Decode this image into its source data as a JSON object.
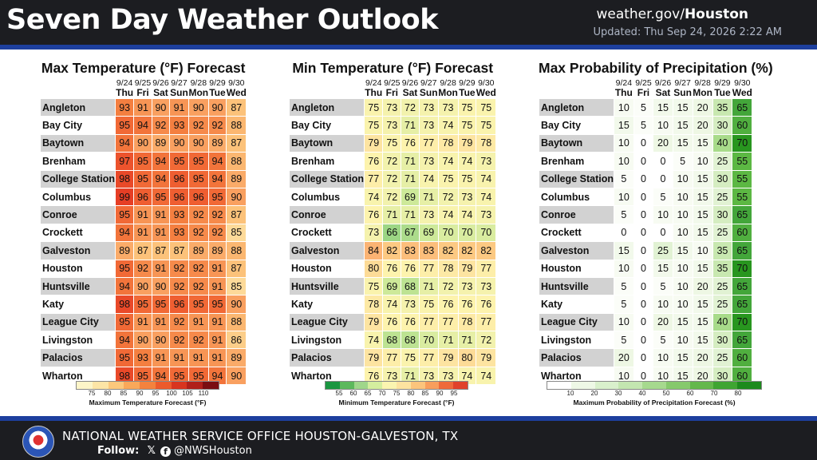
{
  "header": {
    "title": "Seven Day Weather Outlook",
    "site_prefix": "weather.gov/",
    "site_bold": "Houston",
    "updated": "Updated: Thu Sep 24, 2026 2:22 AM"
  },
  "footer": {
    "office": "NATIONAL WEATHER SERVICE OFFICE HOUSTON-GALVESTON, TX",
    "follow_label": "Follow:",
    "x_glyph": "𝕏",
    "fb_glyph": "f",
    "handle": "@NWSHouston"
  },
  "days": [
    {
      "date": "9/24",
      "day": "Thu"
    },
    {
      "date": "9/25",
      "day": "Fri"
    },
    {
      "date": "9/26",
      "day": "Sat"
    },
    {
      "date": "9/27",
      "day": "Sun"
    },
    {
      "date": "9/28",
      "day": "Mon"
    },
    {
      "date": "9/29",
      "day": "Tue"
    },
    {
      "date": "9/30",
      "day": "Wed"
    }
  ],
  "cities": [
    "Angleton",
    "Bay City",
    "Baytown",
    "Brenham",
    "College Station",
    "Columbus",
    "Conroe",
    "Crockett",
    "Galveston",
    "Houston",
    "Huntsville",
    "Katy",
    "League City",
    "Livingston",
    "Palacios",
    "Wharton"
  ],
  "panels": [
    {
      "key": "max",
      "title": "Max Temperature (°F) Forecast",
      "legend_label": "Maximum Temperature Forecast (°F)",
      "legend_ticks": [
        "75",
        "80",
        "85",
        "90",
        "95",
        "100",
        "105",
        "110"
      ],
      "legend_colors": [
        "#fdf5c8",
        "#fde5a6",
        "#fcc87c",
        "#f9a85a",
        "#f4823e",
        "#ec5a2c",
        "#d8341f",
        "#b01f1a",
        "#7a0e12"
      ],
      "values": [
        [
          93,
          91,
          90,
          91,
          90,
          90,
          87
        ],
        [
          95,
          94,
          92,
          93,
          92,
          92,
          88
        ],
        [
          94,
          90,
          89,
          90,
          90,
          89,
          87
        ],
        [
          97,
          95,
          94,
          95,
          95,
          94,
          88
        ],
        [
          98,
          95,
          94,
          96,
          95,
          94,
          89
        ],
        [
          99,
          96,
          95,
          96,
          96,
          95,
          90
        ],
        [
          95,
          91,
          91,
          93,
          92,
          92,
          87
        ],
        [
          94,
          91,
          91,
          93,
          92,
          92,
          85
        ],
        [
          89,
          87,
          87,
          87,
          89,
          89,
          88
        ],
        [
          95,
          92,
          91,
          92,
          92,
          91,
          87
        ],
        [
          94,
          90,
          90,
          92,
          92,
          91,
          85
        ],
        [
          98,
          95,
          95,
          96,
          95,
          95,
          90
        ],
        [
          95,
          91,
          91,
          92,
          91,
          91,
          88
        ],
        [
          94,
          90,
          90,
          92,
          92,
          91,
          86
        ],
        [
          95,
          93,
          91,
          91,
          91,
          91,
          89
        ],
        [
          98,
          95,
          94,
          95,
          95,
          94,
          90
        ]
      ]
    },
    {
      "key": "min",
      "title": "Min Temperature (°F) Forecast",
      "legend_label": "Minimum Temperature Forecast (°F)",
      "legend_ticks": [
        "55",
        "60",
        "65",
        "70",
        "75",
        "80",
        "85",
        "90",
        "95"
      ],
      "legend_colors": [
        "#1a9641",
        "#5cb85c",
        "#9fd68a",
        "#d4ee9e",
        "#fbf5b0",
        "#fde3a0",
        "#fcc47c",
        "#f89e5c",
        "#ee6a3a",
        "#e0422a"
      ],
      "values": [
        [
          75,
          73,
          72,
          73,
          73,
          75,
          75
        ],
        [
          75,
          73,
          71,
          73,
          74,
          75,
          75
        ],
        [
          79,
          75,
          76,
          77,
          78,
          79,
          78
        ],
        [
          76,
          72,
          71,
          73,
          74,
          74,
          73
        ],
        [
          77,
          72,
          71,
          74,
          75,
          75,
          74
        ],
        [
          74,
          72,
          69,
          71,
          72,
          73,
          74
        ],
        [
          76,
          71,
          71,
          73,
          74,
          74,
          73
        ],
        [
          73,
          66,
          67,
          69,
          70,
          70,
          70
        ],
        [
          84,
          82,
          83,
          83,
          82,
          82,
          82
        ],
        [
          80,
          76,
          76,
          77,
          78,
          79,
          77
        ],
        [
          75,
          69,
          68,
          71,
          72,
          73,
          73
        ],
        [
          78,
          74,
          73,
          75,
          76,
          76,
          76
        ],
        [
          79,
          76,
          76,
          77,
          77,
          78,
          77
        ],
        [
          74,
          68,
          68,
          70,
          71,
          71,
          72
        ],
        [
          79,
          77,
          75,
          77,
          79,
          80,
          79
        ],
        [
          76,
          73,
          71,
          73,
          73,
          74,
          74
        ]
      ]
    },
    {
      "key": "pop",
      "title": "Max Probability of Precipitation (%)",
      "legend_label": "Maximum Probability of Precipitation Forecast (%)",
      "legend_ticks": [
        "10",
        "20",
        "30",
        "40",
        "50",
        "60",
        "70",
        "80"
      ],
      "legend_colors": [
        "#ffffff",
        "#eef8e6",
        "#d9f0cc",
        "#c3e6b0",
        "#a6d98e",
        "#86c96c",
        "#64b84c",
        "#3fa532",
        "#1d8a1d"
      ],
      "values": [
        [
          10,
          5,
          15,
          15,
          20,
          35,
          65
        ],
        [
          15,
          5,
          10,
          15,
          20,
          30,
          60
        ],
        [
          10,
          0,
          20,
          15,
          15,
          40,
          70
        ],
        [
          10,
          0,
          0,
          5,
          10,
          25,
          55
        ],
        [
          5,
          0,
          0,
          10,
          15,
          30,
          55
        ],
        [
          10,
          0,
          5,
          10,
          15,
          25,
          55
        ],
        [
          5,
          0,
          10,
          10,
          15,
          30,
          65
        ],
        [
          0,
          0,
          0,
          10,
          15,
          25,
          60
        ],
        [
          15,
          0,
          25,
          15,
          10,
          35,
          65
        ],
        [
          10,
          0,
          15,
          10,
          15,
          35,
          70
        ],
        [
          5,
          0,
          5,
          10,
          20,
          25,
          65
        ],
        [
          5,
          0,
          10,
          10,
          15,
          25,
          65
        ],
        [
          10,
          0,
          20,
          15,
          15,
          40,
          70
        ],
        [
          5,
          0,
          5,
          10,
          15,
          30,
          65
        ],
        [
          20,
          0,
          10,
          15,
          20,
          25,
          60
        ],
        [
          10,
          0,
          10,
          15,
          20,
          30,
          60
        ]
      ]
    }
  ]
}
